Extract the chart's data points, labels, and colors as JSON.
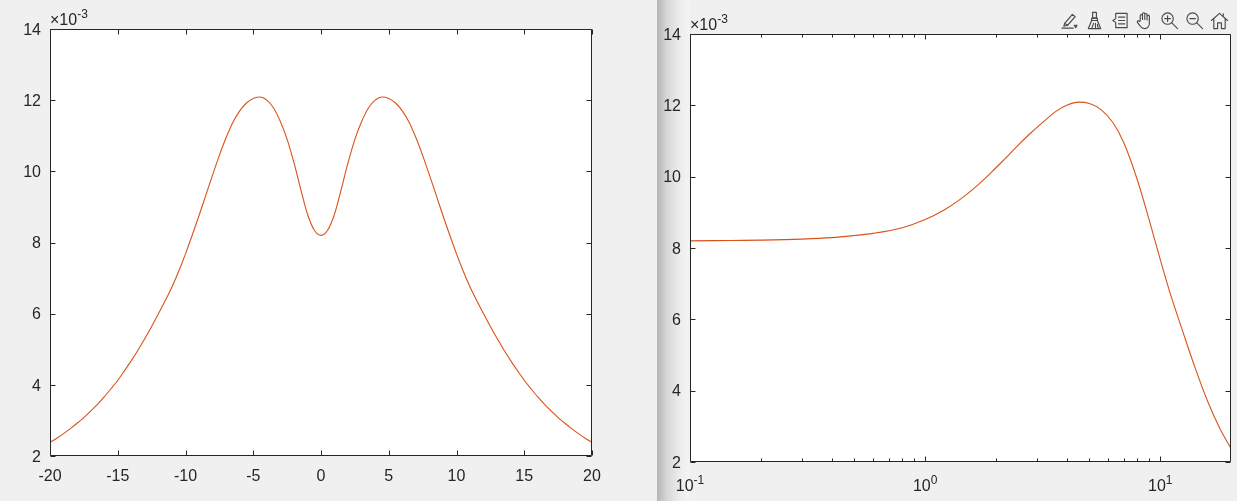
{
  "chart_data": [
    {
      "type": "line",
      "x": [
        -20,
        -19.5,
        -19,
        -18.5,
        -18,
        -17.5,
        -17,
        -16.5,
        -16,
        -15.5,
        -15,
        -14.5,
        -14,
        -13.5,
        -13,
        -12.5,
        -12,
        -11.5,
        -11,
        -10.5,
        -10,
        -9.5,
        -9,
        -8.5,
        -8,
        -7.5,
        -7,
        -6.5,
        -6,
        -5.5,
        -5,
        -4.5,
        -4,
        -3.5,
        -3,
        -2.5,
        -2,
        -1.5,
        -1,
        -0.5,
        0,
        0.5,
        1,
        1.5,
        2,
        2.5,
        3,
        3.5,
        4,
        4.5,
        5,
        5.5,
        6,
        6.5,
        7,
        7.5,
        8,
        8.5,
        9,
        9.5,
        10,
        10.5,
        11,
        11.5,
        12,
        12.5,
        13,
        13.5,
        14,
        14.5,
        15,
        15.5,
        16,
        16.5,
        17,
        17.5,
        18,
        18.5,
        19,
        19.5,
        20
      ],
      "series": [
        {
          "color": "#d95319",
          "values": [
            2.38,
            2.5,
            2.63,
            2.77,
            2.92,
            3.08,
            3.26,
            3.45,
            3.66,
            3.89,
            4.13,
            4.4,
            4.68,
            4.98,
            5.3,
            5.64,
            6.0,
            6.36,
            6.75,
            7.19,
            7.68,
            8.21,
            8.76,
            9.33,
            9.9,
            10.45,
            10.95,
            11.38,
            11.7,
            11.92,
            12.05,
            12.09,
            12.0,
            11.78,
            11.4,
            10.9,
            10.25,
            9.5,
            8.8,
            8.35,
            8.2,
            8.35,
            8.8,
            9.5,
            10.25,
            10.9,
            11.4,
            11.78,
            12.0,
            12.09,
            12.05,
            11.92,
            11.7,
            11.38,
            10.95,
            10.45,
            9.9,
            9.33,
            8.76,
            8.21,
            7.68,
            7.19,
            6.75,
            6.36,
            6.0,
            5.64,
            5.3,
            4.98,
            4.68,
            4.4,
            4.13,
            3.89,
            3.66,
            3.45,
            3.26,
            3.08,
            2.92,
            2.77,
            2.63,
            2.5,
            2.38
          ]
        }
      ],
      "xlim": [
        -20,
        20
      ],
      "ylim": [
        2,
        14
      ],
      "xticks": [
        -20,
        -15,
        -10,
        -5,
        0,
        5,
        10,
        15,
        20
      ],
      "yticks": [
        2,
        4,
        6,
        8,
        10,
        12,
        14
      ],
      "annotations": [
        "×10$^{-3}$"
      ]
    },
    {
      "type": "line",
      "x": [
        0.1,
        0.15,
        0.2,
        0.3,
        0.4,
        0.5,
        0.6,
        0.8,
        1,
        1.2,
        1.4,
        1.6,
        1.8,
        2,
        2.25,
        2.5,
        2.8,
        3.2,
        3.6,
        4,
        4.5,
        5,
        5.6,
        6.3,
        7,
        8,
        9,
        10,
        11,
        12.5,
        14,
        16,
        18,
        20
      ],
      "series": [
        {
          "color": "#d95319",
          "values": [
            8.2,
            8.21,
            8.22,
            8.25,
            8.29,
            8.35,
            8.41,
            8.57,
            8.8,
            9.06,
            9.35,
            9.65,
            9.95,
            10.25,
            10.58,
            10.9,
            11.21,
            11.55,
            11.83,
            12.0,
            12.09,
            12.05,
            11.88,
            11.51,
            10.95,
            9.9,
            8.76,
            7.68,
            6.75,
            5.64,
            4.68,
            3.66,
            2.92,
            2.38
          ]
        }
      ],
      "xlim": [
        0.1,
        20
      ],
      "ylim": [
        2,
        14
      ],
      "log": "x",
      "xticks": [
        {
          "value": 0.1,
          "label": "10$^{-1}$"
        },
        {
          "value": 0.2,
          "label": null
        },
        {
          "value": 0.3,
          "label": null
        },
        {
          "value": 0.4,
          "label": null
        },
        {
          "value": 0.5,
          "label": null
        },
        {
          "value": 0.6,
          "label": null
        },
        {
          "value": 0.7,
          "label": null
        },
        {
          "value": 0.8,
          "label": null
        },
        {
          "value": 0.9,
          "label": null
        },
        {
          "value": 1,
          "label": "10$^{0}$"
        },
        {
          "value": 2,
          "label": null
        },
        {
          "value": 3,
          "label": null
        },
        {
          "value": 4,
          "label": null
        },
        {
          "value": 5,
          "label": null
        },
        {
          "value": 6,
          "label": null
        },
        {
          "value": 7,
          "label": null
        },
        {
          "value": 8,
          "label": null
        },
        {
          "value": 9,
          "label": null
        },
        {
          "value": 10,
          "label": "10$^{1}$"
        }
      ],
      "yticks": [
        2,
        4,
        6,
        8,
        10,
        12,
        14
      ],
      "annotations": [
        "×10$^{-3}$"
      ]
    }
  ]
}
